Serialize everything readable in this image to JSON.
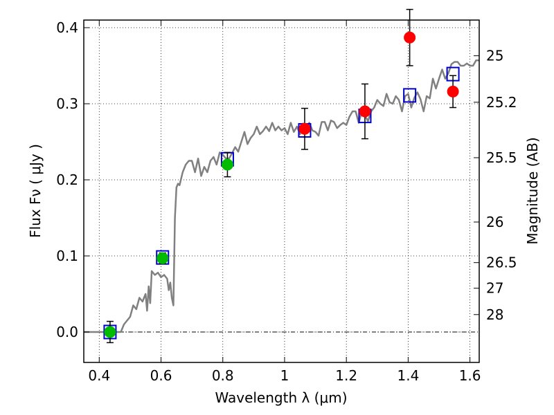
{
  "chart_data": {
    "type": "scatter",
    "title": "",
    "xlabel": "Wavelength  λ (μm)",
    "ylabel": "Flux  Fν  ( μJy )",
    "ylabel_right": "Magnitude (AB)",
    "xlim": [
      0.35,
      1.63
    ],
    "ylim": [
      -0.04,
      0.41
    ],
    "grid": true,
    "xticks": [
      {
        "value": 0.4,
        "label": "0.4"
      },
      {
        "value": 0.6,
        "label": "0.6"
      },
      {
        "value": 0.8,
        "label": "0.8"
      },
      {
        "value": 1.0,
        "label": "1"
      },
      {
        "value": 1.2,
        "label": "1.2"
      },
      {
        "value": 1.4,
        "label": "1.4"
      },
      {
        "value": 1.6,
        "label": "1.6"
      }
    ],
    "yticks": [
      {
        "value": 0.0,
        "label": "0.0"
      },
      {
        "value": 0.1,
        "label": "0.1"
      },
      {
        "value": 0.2,
        "label": "0.2"
      },
      {
        "value": 0.3,
        "label": "0.3"
      },
      {
        "value": 0.4,
        "label": "0.4"
      }
    ],
    "right_ticks": [
      {
        "value": 25.0,
        "label": "25"
      },
      {
        "value": 25.2,
        "label": "25.2"
      },
      {
        "value": 25.5,
        "label": "25.5"
      },
      {
        "value": 26.0,
        "label": "26"
      },
      {
        "value": 26.5,
        "label": "26.5"
      },
      {
        "value": 27.0,
        "label": "27"
      },
      {
        "value": 28.0,
        "label": "28"
      }
    ],
    "series": [
      {
        "kind": "line",
        "color": "#808080",
        "x": [
          0.35,
          0.4,
          0.45,
          0.47,
          0.48,
          0.5,
          0.51,
          0.52,
          0.53,
          0.54,
          0.55,
          0.555,
          0.56,
          0.565,
          0.57,
          0.58,
          0.59,
          0.6,
          0.61,
          0.62,
          0.625,
          0.63,
          0.635,
          0.64,
          0.645,
          0.65,
          0.655,
          0.66,
          0.67,
          0.68,
          0.69,
          0.7,
          0.71,
          0.72,
          0.73,
          0.74,
          0.75,
          0.76,
          0.77,
          0.78,
          0.79,
          0.8,
          0.81,
          0.82,
          0.83,
          0.84,
          0.85,
          0.86,
          0.87,
          0.88,
          0.89,
          0.9,
          0.91,
          0.92,
          0.93,
          0.94,
          0.95,
          0.96,
          0.97,
          0.98,
          0.99,
          1.0,
          1.01,
          1.02,
          1.03,
          1.04,
          1.05,
          1.06,
          1.07,
          1.08,
          1.09,
          1.1,
          1.11,
          1.12,
          1.13,
          1.14,
          1.15,
          1.16,
          1.17,
          1.18,
          1.19,
          1.2,
          1.21,
          1.22,
          1.23,
          1.24,
          1.25,
          1.26,
          1.27,
          1.28,
          1.29,
          1.3,
          1.31,
          1.32,
          1.33,
          1.34,
          1.35,
          1.36,
          1.37,
          1.38,
          1.39,
          1.4,
          1.41,
          1.42,
          1.43,
          1.44,
          1.45,
          1.46,
          1.47,
          1.48,
          1.49,
          1.5,
          1.51,
          1.52,
          1.53,
          1.54,
          1.55,
          1.56,
          1.57,
          1.58,
          1.59,
          1.6,
          1.61,
          1.62,
          1.63
        ],
        "y": [
          0.0,
          0.0,
          0.0,
          0.0,
          0.01,
          0.02,
          0.035,
          0.03,
          0.045,
          0.04,
          0.05,
          0.028,
          0.06,
          0.038,
          0.08,
          0.075,
          0.078,
          0.072,
          0.075,
          0.07,
          0.055,
          0.065,
          0.045,
          0.035,
          0.15,
          0.19,
          0.195,
          0.193,
          0.21,
          0.22,
          0.225,
          0.225,
          0.21,
          0.228,
          0.205,
          0.217,
          0.21,
          0.225,
          0.23,
          0.22,
          0.236,
          0.233,
          0.228,
          0.228,
          0.235,
          0.243,
          0.237,
          0.25,
          0.263,
          0.247,
          0.255,
          0.26,
          0.27,
          0.26,
          0.264,
          0.27,
          0.264,
          0.275,
          0.265,
          0.27,
          0.265,
          0.268,
          0.26,
          0.275,
          0.263,
          0.27,
          0.26,
          0.274,
          0.268,
          0.275,
          0.265,
          0.263,
          0.258,
          0.276,
          0.276,
          0.265,
          0.278,
          0.276,
          0.268,
          0.272,
          0.275,
          0.272,
          0.283,
          0.29,
          0.29,
          0.275,
          0.29,
          0.285,
          0.277,
          0.29,
          0.295,
          0.305,
          0.3,
          0.297,
          0.313,
          0.302,
          0.3,
          0.31,
          0.305,
          0.29,
          0.31,
          0.313,
          0.295,
          0.308,
          0.315,
          0.306,
          0.29,
          0.31,
          0.307,
          0.333,
          0.32,
          0.333,
          0.345,
          0.333,
          0.34,
          0.352,
          0.355,
          0.355,
          0.35,
          0.35,
          0.353,
          0.35,
          0.35,
          0.357,
          0.357
        ]
      },
      {
        "kind": "model_points",
        "marker": "square-open",
        "color": "#0000cc",
        "x": [
          0.435,
          0.605,
          0.815,
          1.065,
          1.26,
          1.405,
          1.545
        ],
        "y": [
          0.0,
          0.098,
          0.227,
          0.265,
          0.284,
          0.311,
          0.339
        ]
      },
      {
        "kind": "observed",
        "marker": "circle",
        "color": "#00bb00",
        "x": [
          0.435,
          0.605,
          0.815
        ],
        "y": [
          0.0,
          0.097,
          0.22
        ],
        "yerr": [
          0.014,
          0.007,
          0.016
        ]
      },
      {
        "kind": "observed",
        "marker": "circle",
        "color": "#ff0000",
        "x": [
          1.065,
          1.26,
          1.405,
          1.545
        ],
        "y": [
          0.267,
          0.29,
          0.387,
          0.316
        ],
        "yerr": [
          0.027,
          0.036,
          0.037,
          0.021
        ]
      }
    ]
  }
}
